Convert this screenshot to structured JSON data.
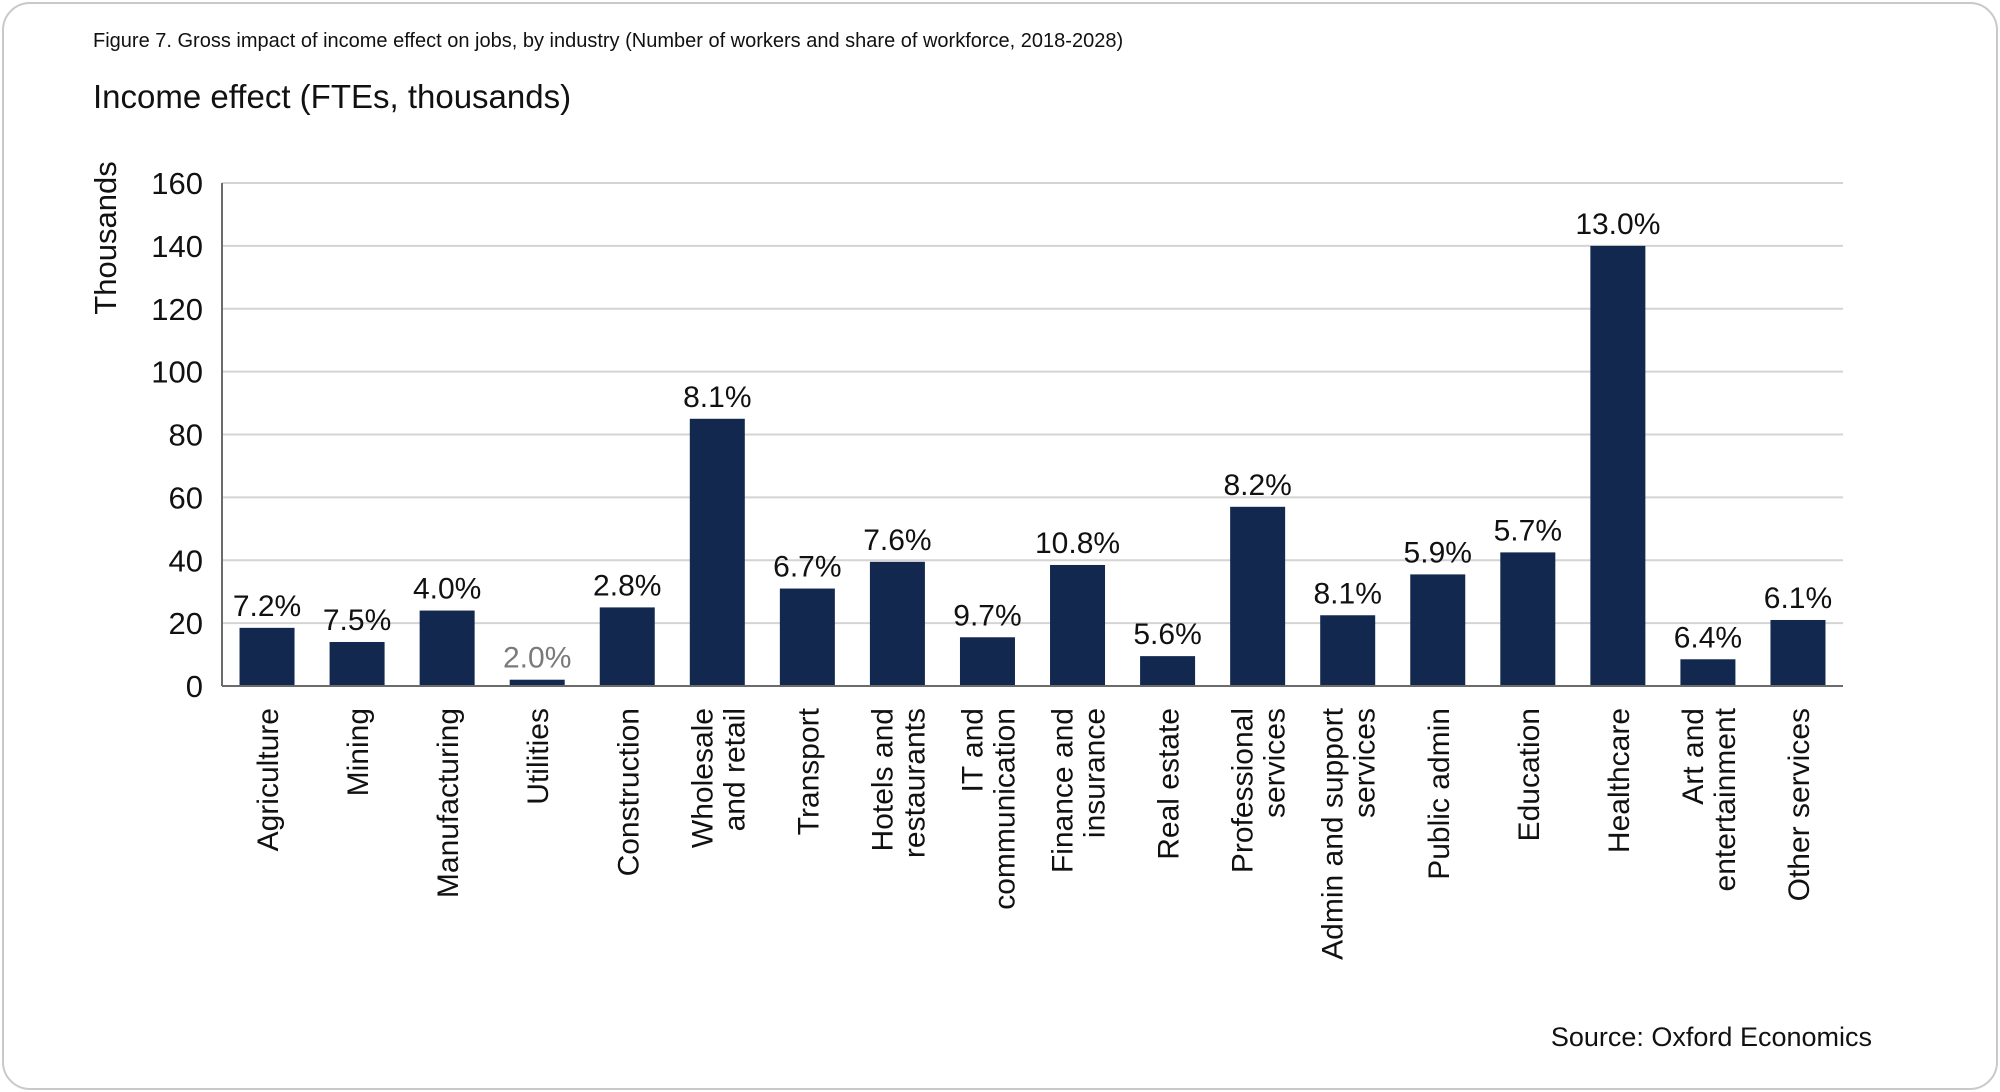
{
  "figure_caption": "Figure 7. Gross impact of income effect on jobs, by industry (Number of workers and share of workforce, 2018-2028)",
  "source": "Source: Oxford Economics",
  "colors": {
    "bar": "#13284f",
    "grid": "#d4d4d4",
    "axis": "#6b6b6b",
    "muted_label": "#7a7a7a"
  },
  "chart_data": {
    "type": "bar",
    "title": "Income effect (FTEs, thousands)",
    "ylabel": "Thousands",
    "xlabel": "",
    "ylim": [
      0,
      160
    ],
    "yticks": [
      0,
      20,
      40,
      60,
      80,
      100,
      120,
      140,
      160
    ],
    "grid": true,
    "categories": [
      [
        "Agriculture"
      ],
      [
        "Mining"
      ],
      [
        "Manufacturing"
      ],
      [
        "Utilities"
      ],
      [
        "Construction"
      ],
      [
        "Wholesale",
        "and retail"
      ],
      [
        "Transport"
      ],
      [
        "Hotels and",
        "restaurants"
      ],
      [
        "IT and",
        "communication"
      ],
      [
        "Finance and",
        "insurance"
      ],
      [
        "Real estate"
      ],
      [
        "Professional",
        "services"
      ],
      [
        "Admin and support",
        "services"
      ],
      [
        "Public admin"
      ],
      [
        "Education"
      ],
      [
        "Healthcare"
      ],
      [
        "Art and",
        "entertainment"
      ],
      [
        "Other  services"
      ]
    ],
    "values": [
      18.5,
      14,
      24,
      2,
      25,
      85,
      31,
      39.5,
      15.5,
      38.5,
      9.5,
      57,
      22.5,
      35.5,
      42.5,
      140,
      8.5,
      21
    ],
    "data_labels": [
      "7.2%",
      "7.5%",
      "4.0%",
      "2.0%",
      "2.8%",
      "8.1%",
      "6.7%",
      "7.6%",
      "9.7%",
      "10.8%",
      "5.6%",
      "8.2%",
      "8.1%",
      "5.9%",
      "5.7%",
      "13.0%",
      "6.4%",
      "6.1%"
    ]
  }
}
